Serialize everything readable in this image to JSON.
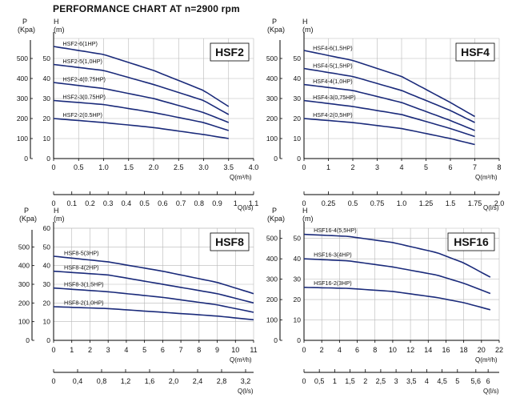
{
  "header": {
    "title": "PERFORMANCE CHART AT  n=2900 rpm"
  },
  "colors": {
    "curve": "#1a2a7a",
    "grid": "#b8b8b8",
    "axis": "#000000"
  },
  "chart_data": [
    {
      "type": "line",
      "model": "HSF2",
      "title": "HSF2",
      "left_labels": [
        "P",
        "(Kpa)"
      ],
      "head_labels": [
        "H",
        "(m)"
      ],
      "xlabel": "Q(m³/h)",
      "x2label": "Q(l/s)",
      "xlim": [
        0,
        4
      ],
      "xticks": [
        "0",
        "0.5",
        "1.0",
        "1.5",
        "2.0",
        "2.5",
        "3.0",
        "3.5",
        "4.0"
      ],
      "x2ticks": [
        "0",
        "0.1",
        "0.2",
        "0.3",
        "0.4",
        "0.5",
        "0.6",
        "0.7",
        "0.8",
        "0.9",
        "1",
        "1.1"
      ],
      "ylim": [
        0,
        60
      ],
      "yticks": [
        "0",
        "10",
        "20",
        "30",
        "40",
        "50"
      ],
      "pticks": [
        "0",
        "100",
        "200",
        "300",
        "400",
        "500"
      ],
      "grid": true,
      "series": [
        {
          "name": "HSF2-6(1HP)",
          "x": [
            0,
            1,
            2,
            3,
            3.5
          ],
          "values": [
            56,
            52,
            44,
            34,
            26
          ]
        },
        {
          "name": "HSF2-5(1,0HP)",
          "x": [
            0,
            1,
            2,
            3,
            3.5
          ],
          "values": [
            47,
            44,
            37,
            29,
            22
          ]
        },
        {
          "name": "HSF2-4(0.75HP)",
          "x": [
            0,
            1,
            2,
            3,
            3.5
          ],
          "values": [
            38,
            35,
            30,
            23,
            18
          ]
        },
        {
          "name": "HSF2-3(0.75HP)",
          "x": [
            0,
            1,
            2,
            3,
            3.5
          ],
          "values": [
            29,
            27,
            23,
            18,
            14
          ]
        },
        {
          "name": "HSF2-2(0.5HP)",
          "x": [
            0,
            1,
            2,
            3,
            3.5
          ],
          "values": [
            20,
            18,
            15.5,
            12,
            10
          ]
        }
      ]
    },
    {
      "type": "line",
      "model": "HSF4",
      "title": "HSF4",
      "left_labels": [
        "P",
        "(Kpa)"
      ],
      "head_labels": [
        "H",
        "(m)"
      ],
      "xlabel": "Q(m³/h)",
      "x2label": "Q(l/s)",
      "xlim": [
        0,
        8
      ],
      "xticks": [
        "0",
        "1",
        "2",
        "3",
        "4",
        "5",
        "6",
        "7",
        "8"
      ],
      "x2ticks": [
        "0",
        "0.25",
        "0.5",
        "0.75",
        "1.0",
        "1.25",
        "1.5",
        "1.75",
        "2.0"
      ],
      "ylim": [
        0,
        60
      ],
      "yticks": [
        "0",
        "10",
        "20",
        "30",
        "40",
        "50"
      ],
      "pticks": [
        "0",
        "100",
        "200",
        "300",
        "400",
        "500"
      ],
      "grid": true,
      "series": [
        {
          "name": "HSF4-6(1,5HP)",
          "x": [
            0,
            2,
            4,
            6,
            7
          ],
          "values": [
            54,
            49,
            41,
            28,
            21
          ]
        },
        {
          "name": "HSF4-5(1,5HP)",
          "x": [
            0,
            2,
            4,
            6,
            7
          ],
          "values": [
            45,
            41,
            34,
            24,
            18
          ]
        },
        {
          "name": "HSF4-4(1,0HP)",
          "x": [
            0,
            2,
            4,
            6,
            7
          ],
          "values": [
            37,
            34,
            28,
            19,
            14
          ]
        },
        {
          "name": "HSF4-3(0,75HP)",
          "x": [
            0,
            2,
            4,
            6,
            7
          ],
          "values": [
            29,
            26,
            22,
            15,
            11
          ]
        },
        {
          "name": "HSF4-2(0,5HP)",
          "x": [
            0,
            2,
            4,
            6,
            7
          ],
          "values": [
            20,
            18,
            15,
            10,
            7
          ]
        }
      ]
    },
    {
      "type": "line",
      "model": "HSF8",
      "title": "HSF8",
      "left_labels": [
        "P",
        "(Kpa)"
      ],
      "head_labels": [
        "H",
        "(m)"
      ],
      "xlabel": "Q(m³/h)",
      "x2label": "Q(l/s)",
      "xlim": [
        0,
        11
      ],
      "xticks": [
        "0",
        "1",
        "2",
        "3",
        "4",
        "5",
        "6",
        "7",
        "8",
        "9",
        "10",
        "11"
      ],
      "x2ticks": [
        "0",
        "0,4",
        "0,8",
        "1,2",
        "1,6",
        "2,0",
        "2,4",
        "2,8",
        "3,2"
      ],
      "x2max": 3.2,
      "ylim": [
        0,
        60
      ],
      "yticks": [
        "0",
        "10",
        "20",
        "30",
        "40",
        "50",
        "60"
      ],
      "pticks": [
        "0",
        "100",
        "200",
        "300",
        "400",
        "500"
      ],
      "grid": true,
      "series": [
        {
          "name": "HSF8-5(3HP)",
          "x": [
            0,
            3,
            6,
            9,
            11
          ],
          "values": [
            45,
            42,
            37,
            31,
            25
          ]
        },
        {
          "name": "HSF8-4(2HP)",
          "x": [
            0,
            3,
            6,
            9,
            11
          ],
          "values": [
            37,
            35,
            30,
            25,
            20
          ]
        },
        {
          "name": "HSF8-3(1,5HP)",
          "x": [
            0,
            3,
            6,
            9,
            11
          ],
          "values": [
            28,
            26,
            23,
            19,
            15
          ]
        },
        {
          "name": "HSF8-2(1,0HP)",
          "x": [
            0,
            3,
            6,
            9,
            11
          ],
          "values": [
            18,
            17,
            15,
            13,
            11
          ]
        }
      ]
    },
    {
      "type": "line",
      "model": "HSF16",
      "title": "HSF16",
      "left_labels": [
        "P",
        "(Kpa)"
      ],
      "head_labels": [
        "H",
        "(m)"
      ],
      "xlabel": "Q(m³/h)",
      "x2label": "Q(l/s)",
      "xlim": [
        0,
        22
      ],
      "xticks": [
        "0",
        "2",
        "4",
        "6",
        "8",
        "10",
        "12",
        "14",
        "16",
        "18",
        "20",
        "22"
      ],
      "x2ticks": [
        "0",
        "0,5",
        "1",
        "1,5",
        "2",
        "2,5",
        "3",
        "3,5",
        "4",
        "4,5",
        "5",
        "5,6",
        "6"
      ],
      "x2max": 6.1,
      "ylim": [
        0,
        55
      ],
      "yticks": [
        "0",
        "10",
        "20",
        "30",
        "40",
        "50"
      ],
      "pticks": [
        "0",
        "100",
        "200",
        "300",
        "400",
        "500"
      ],
      "grid": true,
      "series": [
        {
          "name": "HSF16-4(5,5HP)",
          "x": [
            0,
            5,
            10,
            15,
            18,
            21
          ],
          "values": [
            52,
            51,
            48,
            43,
            38,
            31
          ]
        },
        {
          "name": "HSF16-3(4HP)",
          "x": [
            0,
            5,
            10,
            15,
            18,
            21
          ],
          "values": [
            40,
            39,
            36,
            32,
            28,
            23
          ]
        },
        {
          "name": "HSF16-2(3HP)",
          "x": [
            0,
            5,
            10,
            15,
            18,
            21
          ],
          "values": [
            26,
            25.5,
            24,
            21,
            18.5,
            15
          ]
        }
      ]
    }
  ]
}
